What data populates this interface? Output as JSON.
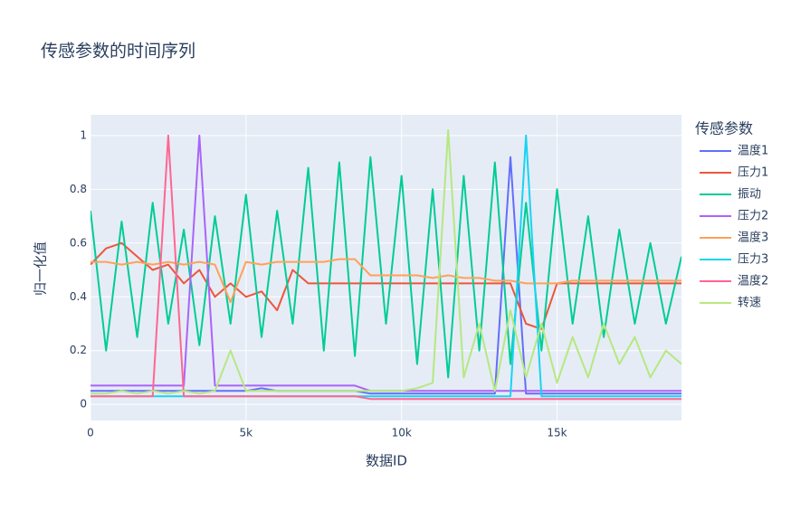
{
  "chart_data": {
    "type": "line",
    "title": "传感参数的时间序列",
    "x_label": "数据ID",
    "y_label": "归一化值",
    "legend_title": "传感参数",
    "xlim": [
      0,
      19000
    ],
    "ylim": [
      -0.06,
      1.077
    ],
    "xticks": [
      0,
      {
        "value": 5000,
        "label": "5k"
      },
      {
        "value": 10000,
        "label": "10k"
      },
      {
        "value": 15000,
        "label": "15k"
      }
    ],
    "yticks": [
      0,
      0.2,
      0.4,
      0.6,
      0.8,
      1
    ],
    "grid": true,
    "x": [
      0,
      500,
      1000,
      1500,
      2000,
      2500,
      3000,
      3500,
      4000,
      4500,
      5000,
      5500,
      6000,
      6500,
      7000,
      7500,
      8000,
      8500,
      9000,
      9500,
      10000,
      10500,
      11000,
      11500,
      12000,
      12500,
      13000,
      13500,
      14000,
      14500,
      15000,
      15500,
      16000,
      16500,
      17000,
      17500,
      18000,
      18500,
      19000
    ],
    "series": [
      {
        "name": "温度1",
        "color": "#636efa",
        "values": [
          0.05,
          0.05,
          0.05,
          0.05,
          0.05,
          0.05,
          0.05,
          0.05,
          0.05,
          0.05,
          0.05,
          0.06,
          0.05,
          0.05,
          0.05,
          0.05,
          0.05,
          0.05,
          0.04,
          0.04,
          0.04,
          0.04,
          0.04,
          0.04,
          0.04,
          0.04,
          0.04,
          0.92,
          0.04,
          0.04,
          0.04,
          0.04,
          0.04,
          0.04,
          0.04,
          0.04,
          0.04,
          0.04,
          0.04
        ]
      },
      {
        "name": "压力1",
        "color": "#EF553B",
        "values": [
          0.52,
          0.58,
          0.6,
          0.55,
          0.5,
          0.52,
          0.45,
          0.5,
          0.4,
          0.45,
          0.4,
          0.42,
          0.35,
          0.5,
          0.45,
          0.45,
          0.45,
          0.45,
          0.45,
          0.45,
          0.45,
          0.45,
          0.45,
          0.45,
          0.45,
          0.45,
          0.45,
          0.45,
          0.3,
          0.28,
          0.45,
          0.45,
          0.45,
          0.45,
          0.45,
          0.45,
          0.45,
          0.45,
          0.45
        ]
      },
      {
        "name": "振动",
        "color": "#00cc96",
        "values": [
          0.72,
          0.2,
          0.68,
          0.25,
          0.75,
          0.3,
          0.65,
          0.22,
          0.7,
          0.3,
          0.78,
          0.25,
          0.72,
          0.3,
          0.88,
          0.2,
          0.9,
          0.18,
          0.92,
          0.3,
          0.85,
          0.15,
          0.8,
          0.1,
          0.85,
          0.2,
          0.9,
          0.15,
          0.75,
          0.2,
          0.8,
          0.3,
          0.7,
          0.25,
          0.65,
          0.3,
          0.6,
          0.3,
          0.55
        ]
      },
      {
        "name": "压力2",
        "color": "#ab63fa",
        "values": [
          0.07,
          0.07,
          0.07,
          0.07,
          0.07,
          0.07,
          0.07,
          1.0,
          0.07,
          0.07,
          0.07,
          0.07,
          0.07,
          0.07,
          0.07,
          0.07,
          0.07,
          0.07,
          0.05,
          0.05,
          0.05,
          0.05,
          0.05,
          0.05,
          0.05,
          0.05,
          0.05,
          0.05,
          0.05,
          0.05,
          0.05,
          0.05,
          0.05,
          0.05,
          0.05,
          0.05,
          0.05,
          0.05,
          0.05
        ]
      },
      {
        "name": "温度3",
        "color": "#FFA15A",
        "values": [
          0.53,
          0.53,
          0.52,
          0.53,
          0.52,
          0.53,
          0.52,
          0.53,
          0.52,
          0.38,
          0.53,
          0.52,
          0.53,
          0.53,
          0.53,
          0.53,
          0.54,
          0.54,
          0.48,
          0.48,
          0.48,
          0.48,
          0.47,
          0.48,
          0.47,
          0.47,
          0.46,
          0.46,
          0.45,
          0.45,
          0.45,
          0.46,
          0.46,
          0.46,
          0.46,
          0.46,
          0.46,
          0.46,
          0.46
        ]
      },
      {
        "name": "压力3",
        "color": "#19d3f3",
        "values": [
          0.03,
          0.03,
          0.03,
          0.03,
          0.03,
          0.03,
          0.03,
          0.03,
          0.03,
          0.03,
          0.03,
          0.03,
          0.03,
          0.03,
          0.03,
          0.03,
          0.03,
          0.03,
          0.03,
          0.03,
          0.03,
          0.03,
          0.03,
          0.03,
          0.03,
          0.03,
          0.03,
          0.03,
          1.0,
          0.03,
          0.03,
          0.03,
          0.03,
          0.03,
          0.03,
          0.03,
          0.03,
          0.03,
          0.03
        ]
      },
      {
        "name": "温度2",
        "color": "#FF6692",
        "values": [
          0.03,
          0.03,
          0.03,
          0.03,
          0.03,
          1.0,
          0.03,
          0.03,
          0.03,
          0.03,
          0.03,
          0.03,
          0.03,
          0.03,
          0.03,
          0.03,
          0.03,
          0.03,
          0.02,
          0.02,
          0.02,
          0.02,
          0.02,
          0.02,
          0.02,
          0.02,
          0.02,
          0.02,
          0.02,
          0.02,
          0.02,
          0.02,
          0.02,
          0.02,
          0.02,
          0.02,
          0.02,
          0.02,
          0.02
        ]
      },
      {
        "name": "转速",
        "color": "#B6E880",
        "values": [
          0.04,
          0.04,
          0.05,
          0.04,
          0.05,
          0.04,
          0.05,
          0.04,
          0.05,
          0.2,
          0.05,
          0.05,
          0.05,
          0.05,
          0.05,
          0.05,
          0.05,
          0.05,
          0.05,
          0.05,
          0.05,
          0.06,
          0.08,
          1.02,
          0.1,
          0.3,
          0.05,
          0.35,
          0.1,
          0.3,
          0.08,
          0.25,
          0.1,
          0.3,
          0.15,
          0.25,
          0.1,
          0.2,
          0.15
        ]
      }
    ]
  }
}
